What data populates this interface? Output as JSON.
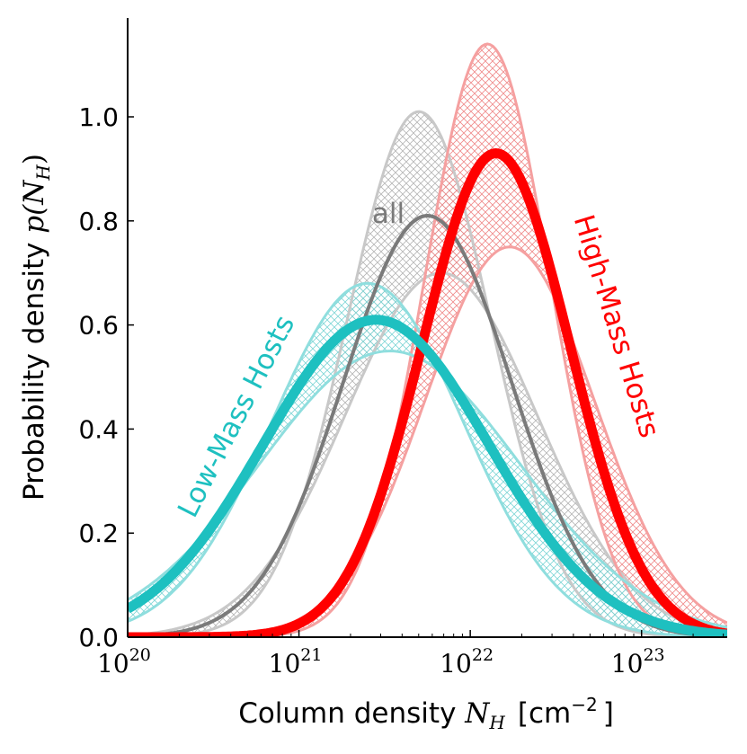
{
  "chart_data": {
    "type": "line",
    "title": "",
    "xlabel": "Column density N_H [cm^-2]",
    "xlabel_parts": {
      "prefix": "Column density ",
      "var": "N",
      "sub": "H",
      "units_open": "[cm",
      "exp": "−2",
      "units_close": "]"
    },
    "ylabel": "Probability density p(N_H)",
    "ylabel_parts": {
      "prefix": "Probability density ",
      "fn": "p(N",
      "sub": "H",
      "close": ")"
    },
    "x_scale": "log",
    "xlim": [
      20.0,
      23.5
    ],
    "ylim": [
      0.0,
      1.19
    ],
    "x_ticks": [
      {
        "base": "10",
        "exp": "20",
        "value": 20
      },
      {
        "base": "10",
        "exp": "21",
        "value": 21
      },
      {
        "base": "10",
        "exp": "22",
        "value": 22
      },
      {
        "base": "10",
        "exp": "23",
        "value": 23
      }
    ],
    "y_ticks": [
      "0.0",
      "0.2",
      "0.4",
      "0.6",
      "0.8",
      "1.0"
    ],
    "series": [
      {
        "name": "all",
        "label": "all",
        "color": "#7a7a7a",
        "band_color": "#c8c8c8",
        "peak_log_nh": 21.75,
        "sigma_dex": 0.49,
        "median_peak": 0.81,
        "upper_peak": 1.01,
        "lower_peak": 0.7
      },
      {
        "name": "low-mass",
        "label": "Low-Mass Hosts",
        "color": "#1ec0c0",
        "band_color": "#8fdede",
        "peak_log_nh": 21.45,
        "sigma_dex": 0.66,
        "median_peak": 0.61,
        "upper_peak": 0.68,
        "lower_peak": 0.55
      },
      {
        "name": "high-mass",
        "label": "High-Mass Hosts",
        "color": "#ff0000",
        "band_color": "#f5a0a0",
        "peak_log_nh": 22.15,
        "sigma_dex": 0.43,
        "median_peak": 0.93,
        "upper_peak": 1.14,
        "lower_peak": 0.75
      }
    ]
  }
}
